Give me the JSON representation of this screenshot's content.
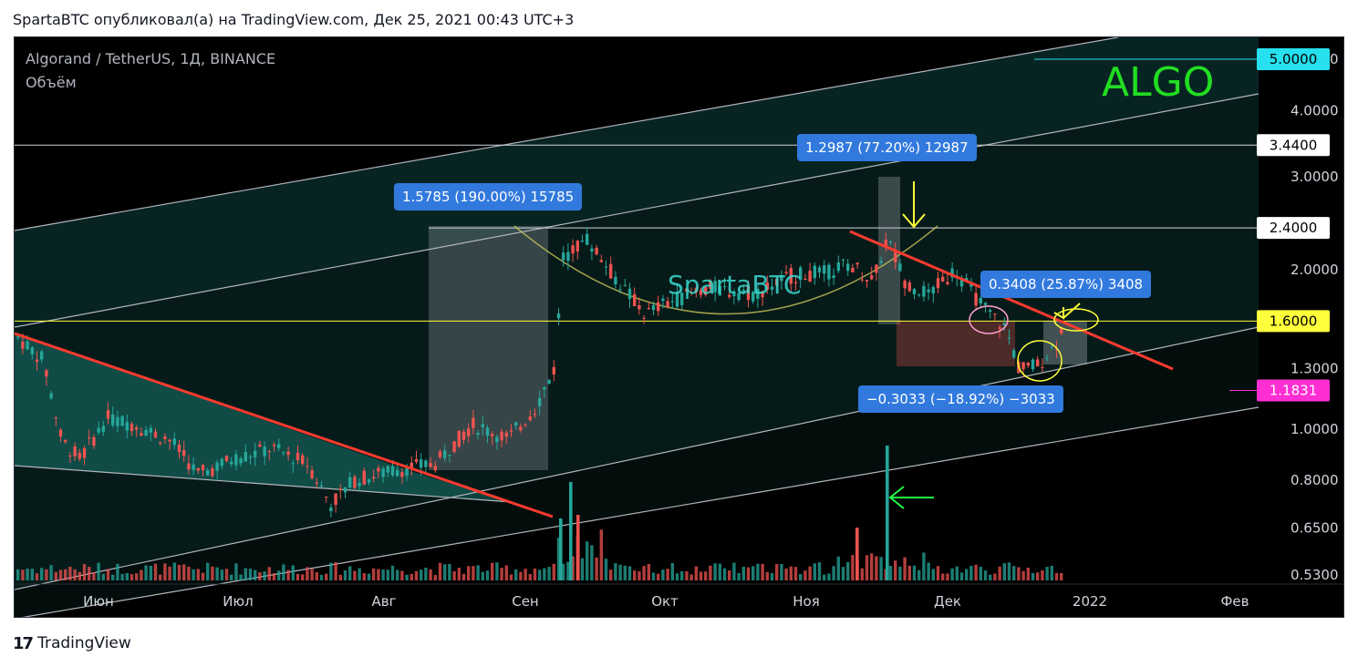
{
  "header": {
    "text": "SpartaBTC опубликовал(а) на TradingView.com, Дек 25, 2021 00:43 UTC+3"
  },
  "footer": {
    "logo": "17",
    "brand": "TradingView"
  },
  "chart_data": {
    "type": "candlestick",
    "title": "Algorand / TetherUS, 1Д, BINANCE",
    "volume_label": "Объём",
    "symbol_label": "ALGO",
    "watermark": "SpartaBTC",
    "price_scale": "log",
    "y_ticks": [
      "5.0000",
      "4.0000",
      "3.0000",
      "2.0000",
      "1.3000",
      "1.0000",
      "0.8000",
      "0.6500",
      "0.5300"
    ],
    "x_ticks": [
      "Июн",
      "Июл",
      "Авг",
      "Сен",
      "Окт",
      "Ноя",
      "Дек",
      "2022",
      "Фев"
    ],
    "price_tags": [
      {
        "value": "5.0000",
        "bg": "#26e0ee",
        "fg": "#000000"
      },
      {
        "value": "3.4400",
        "bg": "#ffffff",
        "fg": "#000000"
      },
      {
        "value": "2.4000",
        "bg": "#ffffff",
        "fg": "#000000"
      },
      {
        "value": "1.6000",
        "bg": "#ffff3b",
        "fg": "#000000"
      },
      {
        "value": "1.1831",
        "bg": "#ff2ed3",
        "fg": "#ffffff"
      }
    ],
    "measure_labels": [
      {
        "text": "1.5785 (190.00%) 15785"
      },
      {
        "text": "1.2987 (77.20%) 12987"
      },
      {
        "text": "0.3408 (25.87%) 3408"
      },
      {
        "text": "−0.3033 (−18.92%) −3033"
      }
    ],
    "horizontal_levels": [
      5.0,
      3.44,
      2.4,
      1.6,
      1.1831
    ],
    "colors": {
      "up": "#26a69a",
      "down": "#ef5350",
      "trend": "#ff3b30",
      "channel": "#b2b5be",
      "level": "#ffff3b",
      "brand": "#22dd22"
    }
  }
}
